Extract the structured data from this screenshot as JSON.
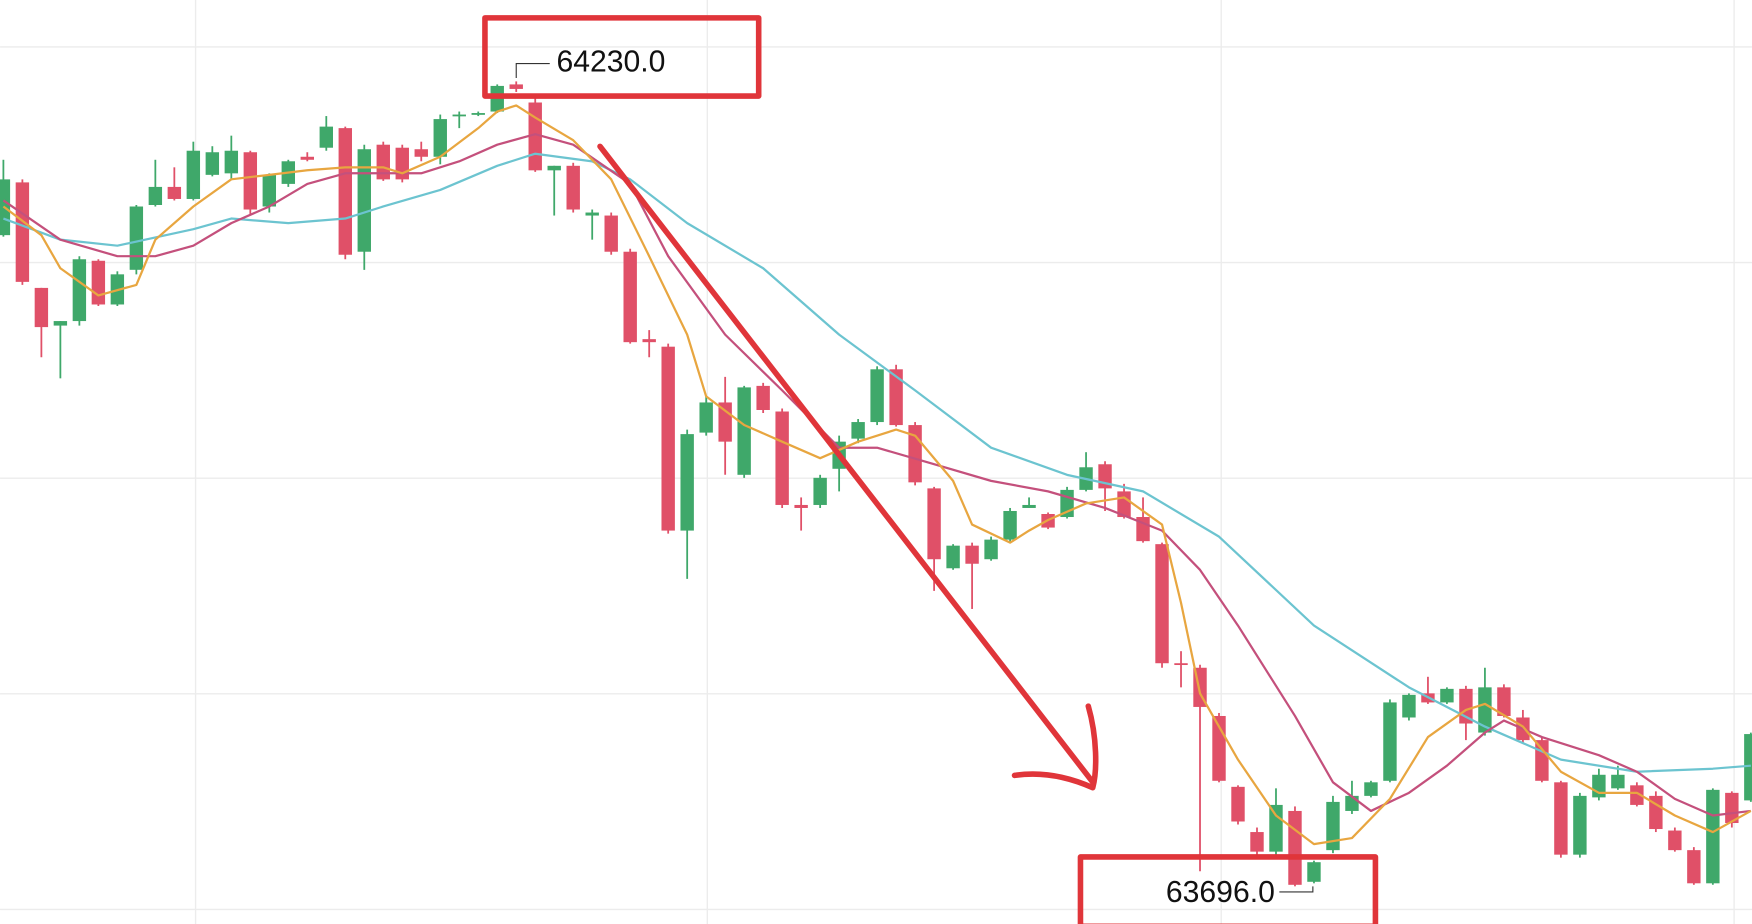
{
  "chart_data": {
    "type": "candlestick",
    "ylim": [
      63671,
      64284
    ],
    "up_color": "#3fa86a",
    "down_color": "#e05068",
    "open": [
      64128,
      64163,
      64093,
      64068,
      64071,
      64111,
      64082,
      64105,
      64148,
      64160,
      64152,
      64168,
      64169,
      64183,
      64147,
      64162,
      64180,
      64186,
      64199,
      64117,
      64188,
      64186,
      64185,
      64180,
      64207,
      64208,
      64210,
      64228,
      64216,
      64171,
      64174,
      64141,
      64141,
      64117,
      64059,
      64054,
      63932,
      63997,
      64017,
      63969,
      64028,
      64011,
      63949,
      63949,
      63973,
      63993,
      64004,
      64039,
      64002,
      63960,
      63907,
      63922,
      63913,
      63926,
      63947,
      63943,
      63941,
      63959,
      63976,
      63958,
      63941,
      63923,
      63844,
      63841,
      63809,
      63762,
      63732,
      63719,
      63746,
      63699,
      63720,
      63746,
      63756,
      63766,
      63808,
      63824,
      63818,
      63827,
      63798,
      63828,
      63808,
      63793,
      63765,
      63717,
      63755,
      63761,
      63763,
      63756,
      63733,
      63720,
      63698,
      63758,
      63753
    ],
    "high": [
      64178,
      64165,
      64093,
      64071,
      64114,
      64112,
      64104,
      64148,
      64178,
      64173,
      64190,
      64187,
      64194,
      64184,
      64169,
      64178,
      64183,
      64207,
      64200,
      64188,
      64190,
      64188,
      64190,
      64208,
      64210,
      64210,
      64228,
      64230,
      64219,
      64174,
      64176,
      64145,
      64143,
      64119,
      64065,
      64056,
      63999,
      64021,
      64034,
      64028,
      64030,
      64013,
      63954,
      63969,
      63995,
      64006,
      64041,
      64042,
      64004,
      63961,
      63923,
      63924,
      63928,
      63947,
      63954,
      63944,
      63961,
      63984,
      63978,
      63963,
      63954,
      63924,
      63852,
      63843,
      63811,
      63763,
      63735,
      63761,
      63749,
      63713,
      63756,
      63766,
      63766,
      63820,
      63824,
      63835,
      63828,
      63829,
      63841,
      63830,
      63813,
      63795,
      63766,
      63758,
      63774,
      63776,
      63765,
      63759,
      63735,
      63722,
      63761,
      63759,
      63798
    ],
    "low": [
      64127,
      64095,
      64047,
      64033,
      64068,
      64081,
      64081,
      64102,
      64147,
      64151,
      64151,
      64167,
      64165,
      64142,
      64143,
      64160,
      64177,
      64184,
      64112,
      64105,
      64164,
      64163,
      64177,
      64175,
      64199,
      64207,
      64209,
      64223,
      64170,
      64141,
      64143,
      64125,
      64115,
      64056,
      64047,
      63930,
      63900,
      63995,
      63969,
      63967,
      64010,
      63947,
      63932,
      63947,
      63958,
      63990,
      64002,
      64001,
      63962,
      63892,
      63906,
      63880,
      63912,
      63924,
      63947,
      63933,
      63940,
      63958,
      63945,
      63940,
      63924,
      63841,
      63828,
      63706,
      63765,
      63737,
      63717,
      63717,
      63696,
      63698,
      63718,
      63744,
      63755,
      63765,
      63806,
      63817,
      63817,
      63793,
      63796,
      63808,
      63791,
      63765,
      63715,
      63715,
      63753,
      63760,
      63749,
      63732,
      63719,
      63697,
      63697,
      63735,
      63752
    ],
    "close": [
      64165,
      64097,
      64067,
      64071,
      64112,
      64082,
      64102,
      64147,
      64160,
      64152,
      64184,
      64183,
      64184,
      64145,
      64168,
      64177,
      64178,
      64200,
      64115,
      64185,
      64165,
      64165,
      64180,
      64205,
      64208,
      64209,
      64227,
      64225,
      64171,
      64174,
      64145,
      64143,
      64117,
      64057,
      64057,
      63932,
      63996,
      64017,
      63991,
      64027,
      64012,
      63949,
      63947,
      63967,
      63991,
      64004,
      64039,
      64002,
      63964,
      63913,
      63922,
      63910,
      63926,
      63945,
      63949,
      63934,
      63959,
      63974,
      63960,
      63941,
      63925,
      63844,
      63843,
      63815,
      63766,
      63739,
      63719,
      63750,
      63697,
      63712,
      63752,
      63756,
      63765,
      63818,
      63823,
      63818,
      63827,
      63804,
      63828,
      63809,
      63793,
      63766,
      63717,
      63756,
      63770,
      63770,
      63750,
      63734,
      63720,
      63698,
      63760,
      63738,
      63797
    ],
    "moving_averages": [
      {
        "color": "#6cc4d0",
        "x": [
          0,
          3,
          6,
          10,
          12,
          15,
          18,
          20,
          23,
          26,
          28,
          31,
          33,
          36,
          40,
          44,
          48,
          52,
          56,
          60,
          64,
          69,
          74,
          78,
          82,
          86,
          90,
          92
        ],
        "values": [
          64139,
          64125,
          64121,
          64132,
          64139,
          64136,
          64139,
          64147,
          64158,
          64174,
          64182,
          64177,
          64165,
          64136,
          64106,
          64062,
          64025,
          63987,
          63969,
          63958,
          63928,
          63869,
          63828,
          63802,
          63780,
          63772,
          63774,
          63776
        ]
      },
      {
        "color": "#c4507c",
        "x": [
          0,
          3,
          6,
          8,
          10,
          12,
          14,
          16,
          18,
          20,
          22,
          24,
          26,
          28,
          30,
          33,
          35,
          38,
          41,
          44,
          46,
          49,
          52,
          55,
          58,
          61,
          63,
          65,
          68,
          70,
          72,
          74,
          76,
          78,
          79,
          81,
          84,
          86,
          88,
          90,
          92
        ],
        "values": [
          64151,
          64125,
          64114,
          64114,
          64121,
          64136,
          64147,
          64162,
          64169,
          64169,
          64169,
          64177,
          64188,
          64195,
          64188,
          64162,
          64114,
          64062,
          64025,
          63987,
          63987,
          63976,
          63965,
          63958,
          63947,
          63932,
          63906,
          63869,
          63809,
          63765,
          63746,
          63758,
          63776,
          63798,
          63806,
          63795,
          63783,
          63772,
          63754,
          63743,
          63746
        ]
      },
      {
        "color": "#e8a640",
        "x": [
          0,
          2,
          3,
          5,
          7,
          8,
          10,
          12,
          14,
          16,
          18,
          20,
          21,
          23,
          25,
          26,
          27,
          28,
          30,
          32,
          34,
          36,
          37,
          39,
          41,
          43,
          45,
          47,
          48,
          50,
          51,
          53,
          54,
          55,
          57,
          59,
          61,
          62,
          63,
          65,
          67,
          69,
          71,
          73,
          75,
          77,
          78,
          80,
          82,
          84,
          86,
          88,
          90,
          92
        ],
        "values": [
          64147,
          64128,
          64106,
          64088,
          64095,
          64125,
          64147,
          64165,
          64168,
          64171,
          64173,
          64173,
          64169,
          64180,
          64199,
          64210,
          64214,
          64206,
          64191,
          64165,
          64114,
          64062,
          64021,
          64002,
          63991,
          63980,
          63991,
          63999,
          63995,
          63965,
          63936,
          63924,
          63932,
          63939,
          63950,
          63954,
          63936,
          63884,
          63824,
          63780,
          63743,
          63724,
          63728,
          63754,
          63795,
          63813,
          63817,
          63802,
          63772,
          63758,
          63758,
          63743,
          63732,
          63746
        ]
      }
    ],
    "high_label": {
      "value": 64230,
      "label": "64230.0"
    },
    "low_label": {
      "value": 63696,
      "label": "63696.0"
    }
  }
}
